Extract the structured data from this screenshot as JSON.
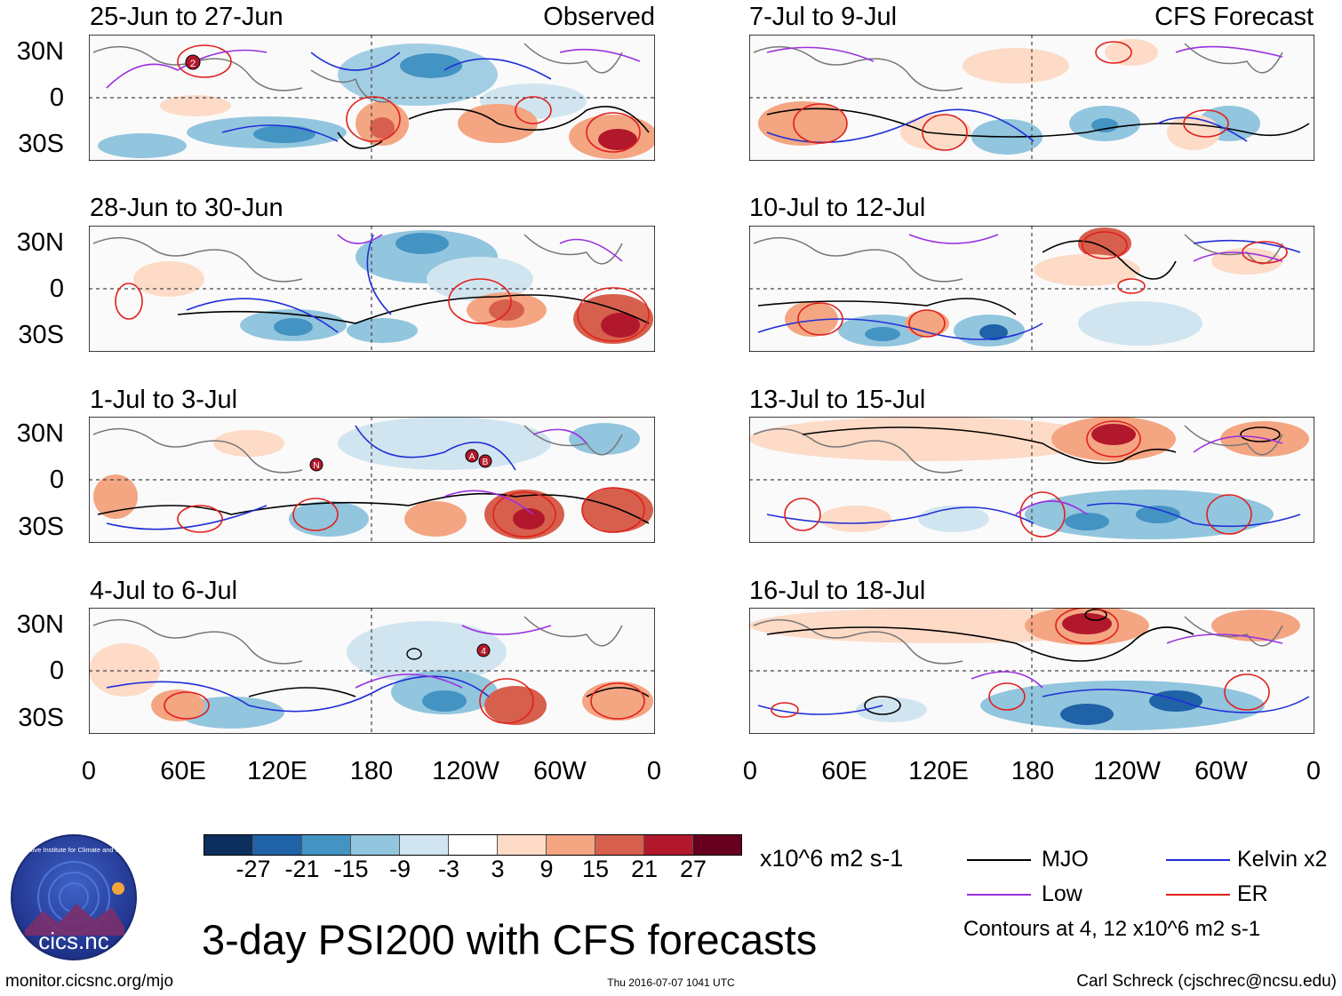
{
  "panels_left": [
    {
      "title": "25-Jun to 27-Jun",
      "tag": "Observed"
    },
    {
      "title": "28-Jun to 30-Jun",
      "tag": ""
    },
    {
      "title": "1-Jul to 3-Jul",
      "tag": ""
    },
    {
      "title": "4-Jul to 6-Jul",
      "tag": ""
    }
  ],
  "panels_right": [
    {
      "title": "7-Jul to 9-Jul",
      "tag": "CFS Forecast"
    },
    {
      "title": "10-Jul to 12-Jul",
      "tag": ""
    },
    {
      "title": "13-Jul to 15-Jul",
      "tag": ""
    },
    {
      "title": "16-Jul to 18-Jul",
      "tag": ""
    }
  ],
  "lat_labels": [
    "30N",
    "0",
    "30S"
  ],
  "lon_labels": [
    "0",
    "60E",
    "120E",
    "180",
    "120W",
    "60W",
    "0"
  ],
  "markers": {
    "p1": "2",
    "p3a": "N",
    "p3b": "A",
    "p3c": "B",
    "p4": "4"
  },
  "colorbar": {
    "labels": [
      "-27",
      "-21",
      "-15",
      "-9",
      "-3",
      "3",
      "9",
      "15",
      "21",
      "27"
    ],
    "units": "x10^6 m2 s-1",
    "colors": [
      "#0d2f5e",
      "#1f62a8",
      "#4393c3",
      "#92c5de",
      "#d1e5f0",
      "#ffffff",
      "#fddbc7",
      "#f4a582",
      "#d6604d",
      "#b2182b",
      "#67001f"
    ]
  },
  "legend": {
    "items": [
      {
        "label": "MJO",
        "color": "#000000"
      },
      {
        "label": "Kelvin x2",
        "color": "#1f2fd6"
      },
      {
        "label": "Low",
        "color": "#9b30e0"
      },
      {
        "label": "ER",
        "color": "#e0201c"
      }
    ],
    "contours_note": "Contours at 4, 12 x10^6 m2 s-1"
  },
  "logo_text": "cics.nc",
  "logo_ring_text": "Cooperative Institute for Climate and Satellites",
  "main_title": "3-day PSI200 with CFS forecasts",
  "footer": {
    "url": "monitor.cicsnc.org/mjo",
    "timestamp": "Thu 2016-07-07 1041 UTC",
    "author": "Carl Schreck (cjschrec@ncsu.edu)"
  }
}
